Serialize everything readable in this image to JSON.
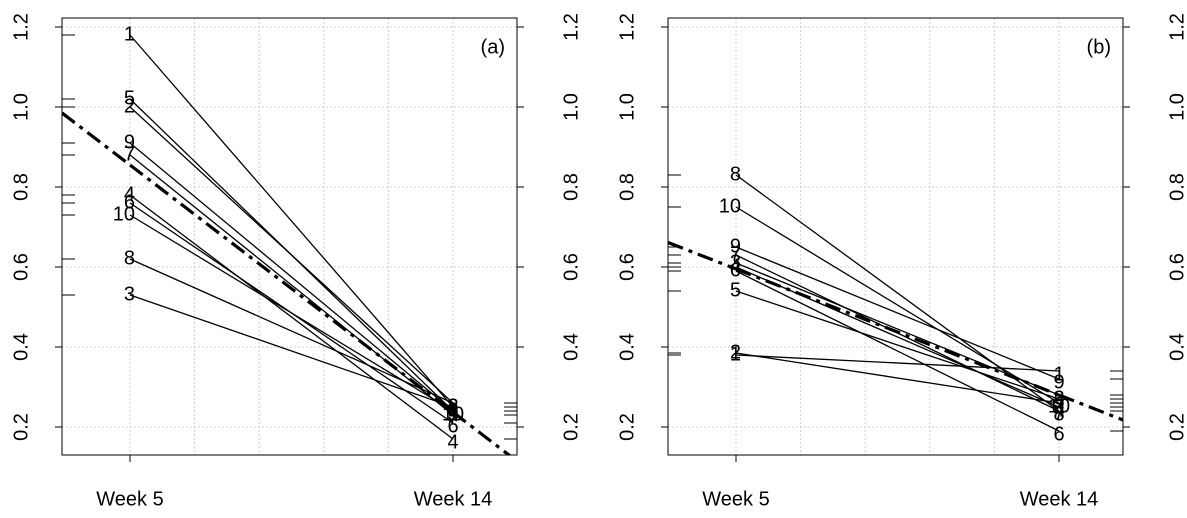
{
  "chart_data": [
    {
      "type": "line",
      "panel_label": "(a)",
      "categories": [
        "Week 5",
        "Week 14"
      ],
      "ylim": [
        0.13,
        1.2225
      ],
      "yticks": [
        0.2,
        0.4,
        0.6,
        0.8,
        {
          "value": 1,
          "label": "1.0"
        },
        1.2
      ],
      "grid": true,
      "series": [
        {
          "name": "1",
          "color": "#000000",
          "values": [
            1.18,
            0.25
          ]
        },
        {
          "name": "2",
          "color": "#000000",
          "values": [
            1.0,
            0.26
          ]
        },
        {
          "name": "3",
          "color": "#000000",
          "values": [
            0.53,
            0.25
          ]
        },
        {
          "name": "4",
          "color": "#000000",
          "values": [
            0.78,
            0.17
          ]
        },
        {
          "name": "5",
          "color": "#000000",
          "values": [
            1.02,
            0.24
          ]
        },
        {
          "name": "6",
          "color": "#000000",
          "values": [
            0.76,
            0.21
          ]
        },
        {
          "name": "7",
          "color": "#000000",
          "values": [
            0.88,
            0.23
          ]
        },
        {
          "name": "8",
          "color": "#000000",
          "values": [
            0.62,
            0.26
          ]
        },
        {
          "name": "9",
          "color": "#000000",
          "values": [
            0.91,
            0.24
          ]
        },
        {
          "name": "10",
          "color": "#000000",
          "values": [
            0.73,
            0.24
          ]
        }
      ],
      "trend": {
        "color": "#000000",
        "dashed": true,
        "values": [
          0.855,
          0.237
        ]
      }
    },
    {
      "type": "line",
      "panel_label": "(b)",
      "categories": [
        "Week 5",
        "Week 14"
      ],
      "ylim": [
        0.13,
        1.2225
      ],
      "yticks": [
        0.2,
        0.4,
        0.6,
        0.8,
        {
          "value": 1,
          "label": "1.0"
        },
        1.2
      ],
      "grid": true,
      "series": [
        {
          "name": "1",
          "color": "#000000",
          "values": [
            0.38,
            0.34
          ]
        },
        {
          "name": "2",
          "color": "#000000",
          "values": [
            0.385,
            0.26
          ]
        },
        {
          "name": "3",
          "color": "#000000",
          "values": [
            0.61,
            0.28
          ]
        },
        {
          "name": "4",
          "color": "#000000",
          "values": [
            0.6,
            0.25
          ]
        },
        {
          "name": "5",
          "color": "#000000",
          "values": [
            0.54,
            0.27
          ]
        },
        {
          "name": "6",
          "color": "#000000",
          "values": [
            0.59,
            0.19
          ]
        },
        {
          "name": "7",
          "color": "#000000",
          "values": [
            0.63,
            0.24
          ]
        },
        {
          "name": "8",
          "color": "#000000",
          "values": [
            0.83,
            0.24
          ]
        },
        {
          "name": "9",
          "color": "#000000",
          "values": [
            0.65,
            0.32
          ]
        },
        {
          "name": "10",
          "color": "#000000",
          "values": [
            0.75,
            0.26
          ]
        }
      ],
      "trend": {
        "color": "#000000",
        "dashed": true,
        "values": [
          0.595,
          0.28
        ]
      }
    }
  ]
}
